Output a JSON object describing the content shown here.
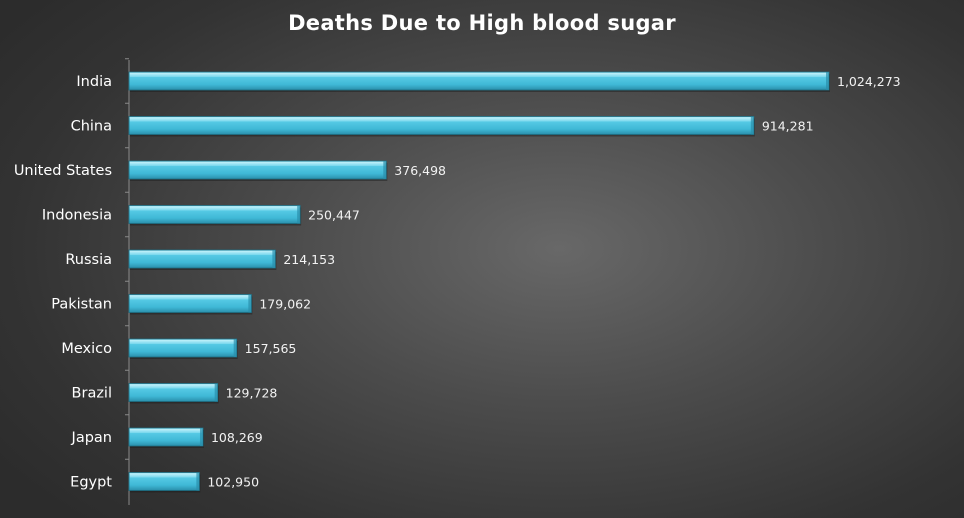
{
  "chart_data": {
    "type": "bar",
    "orientation": "horizontal",
    "title": "Deaths Due to High blood sugar",
    "xlabel": "",
    "ylabel": "",
    "categories": [
      "India",
      "China",
      "United States",
      "Indonesia",
      "Russia",
      "Pakistan",
      "Mexico",
      "Brazil",
      "Japan",
      "Egypt"
    ],
    "values": [
      1024273,
      914281,
      376498,
      250447,
      214153,
      179062,
      157565,
      129728,
      108269,
      102950
    ],
    "value_labels": [
      "1,024,273",
      "914,281",
      "376,498",
      "250,447",
      "214,153",
      "179,062",
      "157,565",
      "129,728",
      "108,269",
      "102,950"
    ],
    "xlim": [
      0,
      1024273
    ],
    "grid": false,
    "legend": "none",
    "bar_color": "#4cc4e0",
    "bar_top_color": "#9ae4f4",
    "bar_edge_color": "#1d6f84",
    "background_color": "#4a4a4a"
  }
}
